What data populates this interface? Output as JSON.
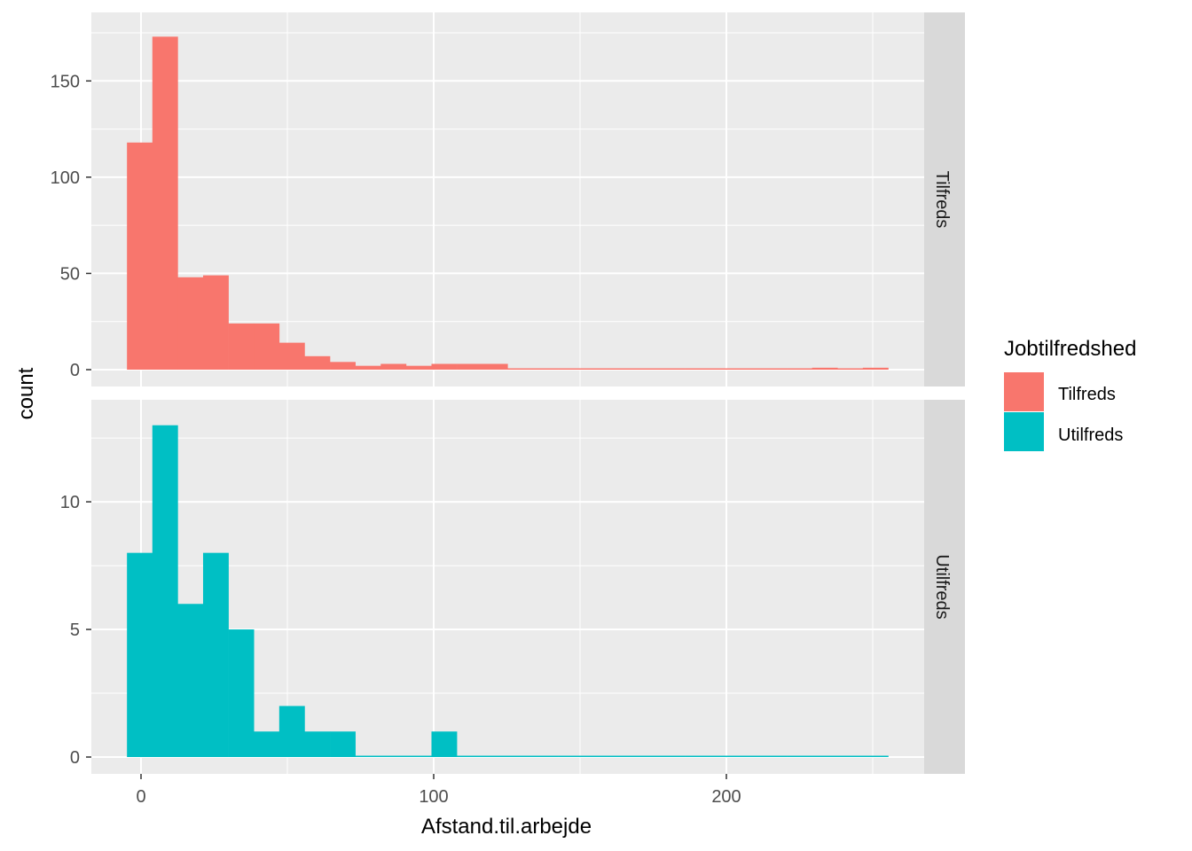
{
  "chart_data": {
    "type": "bar",
    "subtype": "faceted histogram",
    "xlabel": "Afstand.til.arbejde",
    "ylabel": "count",
    "x_ticks": [
      0,
      100,
      200
    ],
    "xlim": [
      -9,
      268
    ],
    "bin_start": -4.8,
    "bin_width": 8.67,
    "grid": true,
    "legend": {
      "title": "Jobtilfredshed",
      "position": "right"
    },
    "facets": [
      {
        "name": "Tilfreds",
        "color": "#F8766D",
        "ylim": [
          0,
          181
        ],
        "y_ticks": [
          0,
          50,
          100,
          150
        ],
        "values": [
          118,
          173,
          48,
          49,
          24,
          24,
          14,
          7,
          4,
          2,
          3,
          2,
          3,
          3,
          3,
          0,
          0,
          0,
          0,
          0,
          0,
          0,
          0,
          0,
          0,
          0,
          0,
          1,
          0,
          1
        ]
      },
      {
        "name": "Utilfreds",
        "color": "#00BFC4",
        "ylim": [
          0,
          13.65
        ],
        "y_ticks": [
          0,
          5,
          10
        ],
        "values": [
          8,
          13,
          6,
          8,
          5,
          1,
          2,
          1,
          1,
          0,
          0,
          0,
          1,
          0,
          0,
          0,
          0,
          0,
          0,
          0,
          0,
          0,
          0,
          0,
          0,
          0,
          0,
          0,
          0,
          0
        ]
      }
    ]
  }
}
